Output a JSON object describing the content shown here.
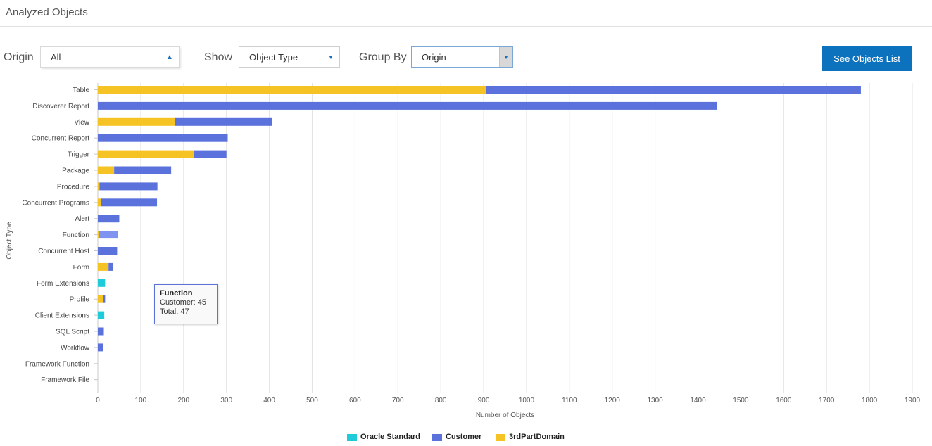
{
  "page": {
    "title": "Analyzed Objects"
  },
  "filters": {
    "origin": {
      "label": "Origin",
      "value": "All",
      "arrow_icon": "triangle-up-icon"
    },
    "show": {
      "label": "Show",
      "value": "Object Type",
      "arrow_icon": "triangle-down-icon"
    },
    "group_by": {
      "label": "Group By",
      "value": "Origin",
      "arrow_icon": "triangle-down-icon"
    },
    "button_label": "See Objects List"
  },
  "colors": {
    "oracle_standard": "#1fcbd9",
    "customer": "#5b71db",
    "third_party": "#f6c324",
    "highlight_customer": "#7f93f0",
    "button": "#0d72bd"
  },
  "tooltip": {
    "title": "Function",
    "line1": "Customer: 45",
    "line2": "Total: 47"
  },
  "chart_data": {
    "type": "bar",
    "orientation": "horizontal",
    "stacked": true,
    "title": "",
    "xlabel": "Number of Objects",
    "ylabel": "Object Type",
    "xlim": [
      0,
      1900
    ],
    "xticks": [
      0,
      100,
      200,
      300,
      400,
      500,
      600,
      700,
      800,
      900,
      1000,
      1100,
      1200,
      1300,
      1400,
      1500,
      1600,
      1700,
      1800,
      1900
    ],
    "grid": true,
    "legend_position": "bottom",
    "highlighted_category": "Function",
    "categories": [
      "Table",
      "Discoverer Report",
      "View",
      "Concurrent Report",
      "Trigger",
      "Package",
      "Procedure",
      "Concurrent Programs",
      "Alert",
      "Function",
      "Concurrent Host",
      "Form",
      "Form Extensions",
      "Profile",
      "Client Extensions",
      "SQL Script",
      "Workflow",
      "Framework Function",
      "Framework File"
    ],
    "series": [
      {
        "name": "3rdPartDomain",
        "color": "#f6c324",
        "values": [
          905,
          0,
          180,
          0,
          225,
          38,
          4,
          8,
          0,
          2,
          0,
          25,
          0,
          12,
          0,
          0,
          0,
          0,
          0
        ]
      },
      {
        "name": "Customer",
        "color": "#5b71db",
        "values": [
          875,
          1445,
          227,
          303,
          75,
          133,
          135,
          130,
          50,
          45,
          45,
          10,
          0,
          5,
          0,
          14,
          12,
          0,
          0
        ]
      },
      {
        "name": "Oracle Standard",
        "color": "#1fcbd9",
        "values": [
          0,
          0,
          0,
          0,
          0,
          0,
          0,
          0,
          0,
          0,
          0,
          0,
          17,
          0,
          15,
          0,
          0,
          0,
          0
        ]
      }
    ],
    "legend_order": [
      "Oracle Standard",
      "Customer",
      "3rdPartDomain"
    ]
  }
}
